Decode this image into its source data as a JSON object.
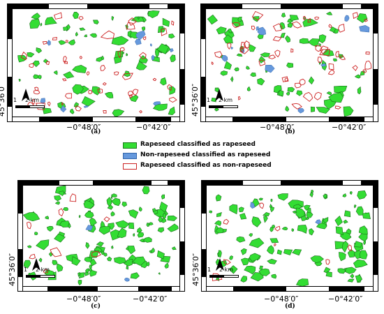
{
  "panels": [
    {
      "caption": "(a)",
      "lat_label": "45°36′0″",
      "lon_labels": [
        "−0°48′0″",
        "−0°42′0″"
      ],
      "scale": {
        "labels": [
          "1",
          "2 km"
        ]
      },
      "north_label": "N",
      "classes_present": [
        "green",
        "blue",
        "red"
      ]
    },
    {
      "caption": "(b)",
      "lat_label": "45°36′0″",
      "lon_labels": [
        "−0°48′0″",
        "−0°42′0″"
      ],
      "scale": {
        "labels": [
          "1",
          "2 km"
        ]
      },
      "north_label": "N",
      "classes_present": [
        "green",
        "blue",
        "red"
      ]
    },
    {
      "caption": "(c)",
      "lat_label": "45°36′0″",
      "lon_labels": [
        "−0°48′0″",
        "−0°42′0″"
      ],
      "scale": {
        "labels": [
          "1",
          "2 km"
        ]
      },
      "north_label": "N",
      "classes_present": [
        "green",
        "blue",
        "red"
      ]
    },
    {
      "caption": "(d)",
      "lat_label": "45°36′0″",
      "lon_labels": [
        "−0°48′0″",
        "−0°42′0″"
      ],
      "scale": {
        "labels": [
          "1",
          "2 km"
        ]
      },
      "north_label": "N",
      "classes_present": [
        "green",
        "blue",
        "red"
      ]
    }
  ],
  "legend": [
    {
      "label": "Rapeseed classified as rapeseed",
      "fill": "#33dd33",
      "stroke": "#1a7a1a",
      "kind": "filled"
    },
    {
      "label": "Non-rapeseed  classified as rapeseed",
      "fill": "#6699dd",
      "stroke": "#3366aa",
      "kind": "filled"
    },
    {
      "label": "Rapeseed classified as non-rapeseed",
      "fill": "#ffffff",
      "stroke": "#cc2222",
      "kind": "outline"
    }
  ],
  "colors": {
    "green": "#33dd33",
    "green_stroke": "#1a6e1a",
    "blue": "#6699dd",
    "red": "#cc2222"
  }
}
